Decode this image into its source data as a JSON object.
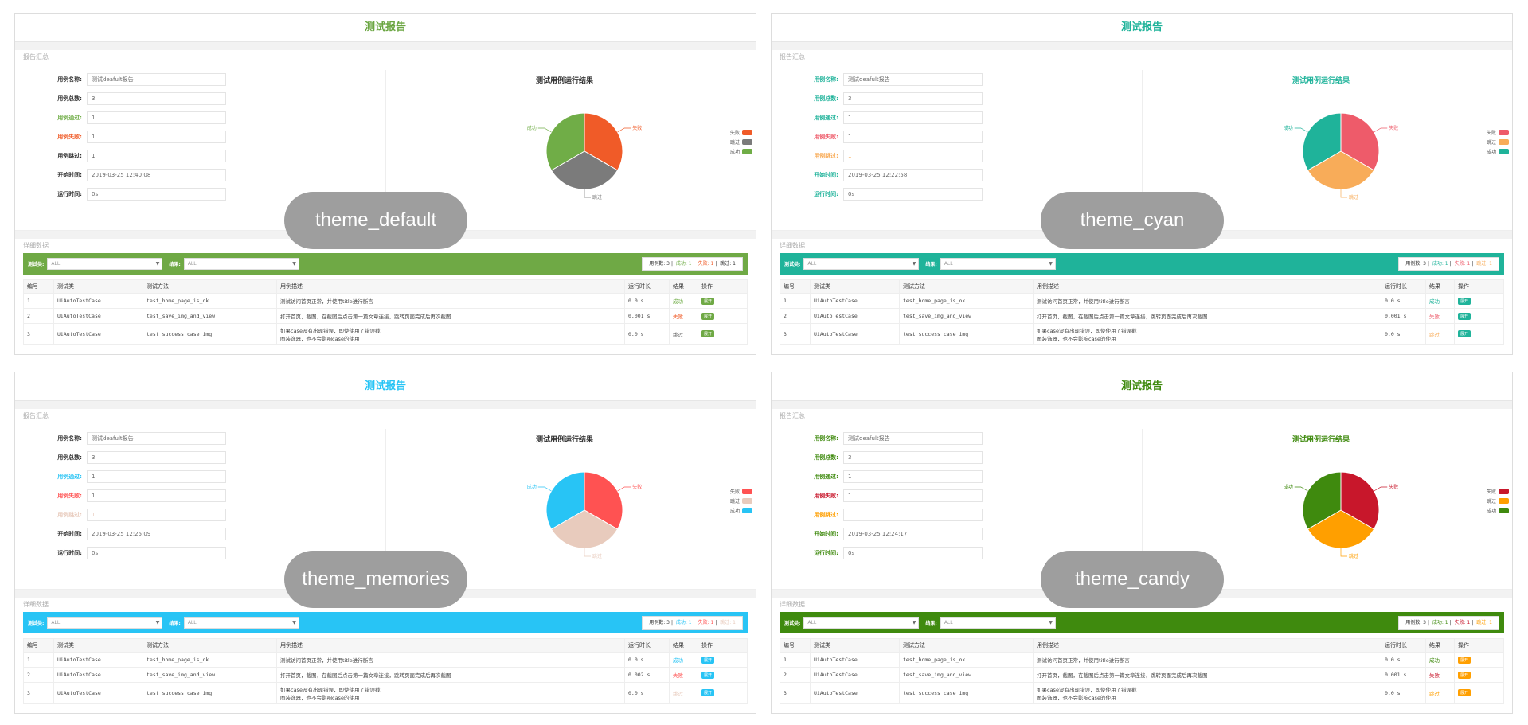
{
  "common": {
    "summary_label": "报告汇总",
    "detail_label": "详细数据",
    "chart_title": "测试用例运行结果",
    "filter_class_label": "测试类:",
    "filter_result_label": "结果:",
    "filter_all": "ALL",
    "fields": {
      "name": {
        "label": "用例名称:",
        "value": "测试deafult报告"
      },
      "total": {
        "label": "用例总数:",
        "value": "3"
      },
      "pass": {
        "label": "用例通过:",
        "value": "1"
      },
      "fail": {
        "label": "用例失败:",
        "value": "1"
      },
      "skip": {
        "label": "用例跳过:",
        "value": "1"
      },
      "start": {
        "label": "开始时间:"
      },
      "run": {
        "label": "运行时间:",
        "value": "0s"
      }
    },
    "counts": {
      "total": "用例数: 3",
      "pass": "成功: 1",
      "fail": "失败: 1",
      "skip": "跳过: 1"
    },
    "table": {
      "headers": [
        "编号",
        "测试类",
        "测试方法",
        "用例描述",
        "运行时长",
        "结果",
        "操作"
      ],
      "rows": [
        {
          "no": "1",
          "cls": "UiAutoTestCase",
          "method": "test_home_page_is_ok",
          "desc1": "测试访问首页正常，并使用title进行断言",
          "desc2": "",
          "result": "成功",
          "rtype": "pass",
          "op": "展开"
        },
        {
          "no": "2",
          "cls": "UiAutoTestCase",
          "method": "test_save_img_and_view",
          "desc1": "打开首页，截图，在截图后点击第一篇文章连接，跳转页面完成后再次截图",
          "desc2": "",
          "result": "失败",
          "rtype": "fail",
          "op": "展开"
        },
        {
          "no": "3",
          "cls": "UiAutoTestCase",
          "method": "test_success_case_img",
          "desc1": "如果case没有出现错误，即使使用了错误截",
          "desc2": "图装饰器，也不会影响case的使用",
          "result": "跳过",
          "rtype": "skip",
          "op": "展开"
        }
      ]
    },
    "pie_labels": {
      "pass": "成功",
      "fail": "失败",
      "skip": "跳过"
    },
    "legend": {
      "fail": "失败",
      "skip": "跳过",
      "pass": "成功"
    }
  },
  "chart_data": [
    {
      "type": "pie",
      "title": "测试用例运行结果",
      "labels": [
        "成功",
        "失败",
        "跳过"
      ],
      "values": [
        1,
        1,
        1
      ],
      "theme": "theme_default"
    },
    {
      "type": "pie",
      "title": "测试用例运行结果",
      "labels": [
        "成功",
        "失败",
        "跳过"
      ],
      "values": [
        1,
        1,
        1
      ],
      "theme": "theme_cyan"
    },
    {
      "type": "pie",
      "title": "测试用例运行结果",
      "labels": [
        "成功",
        "失败",
        "跳过"
      ],
      "values": [
        1,
        1,
        1
      ],
      "theme": "theme_memories"
    },
    {
      "type": "pie",
      "title": "测试用例运行结果",
      "labels": [
        "成功",
        "失败",
        "跳过"
      ],
      "values": [
        1,
        1,
        1
      ],
      "theme": "theme_candy"
    }
  ],
  "panels": [
    {
      "id": "default",
      "title": "测试报告",
      "overlay": "theme_default",
      "start_time": "2019-03-25 12:40:08",
      "durations": [
        "0.0 s",
        "0.001 s",
        "0.0 s"
      ],
      "colors": {
        "title": "#6ba642",
        "bar": "#6fa945",
        "pass": "#70ad47",
        "fail": "#f05b28",
        "skip": "#7b7b7b",
        "btn": "#6fa945",
        "ctitle": "#333333",
        "label_total": "#333333",
        "label_pass": "#70ad47",
        "label_fail": "#f05b28",
        "label_skip": "#333333",
        "label_start": "#333333",
        "label_run": "#333333",
        "label_name": "#333333",
        "val_pass": "#666666",
        "val_fail": "#666666",
        "val_skip": "#666666",
        "res_skip": "#666666",
        "cnt_skip": "#333333"
      }
    },
    {
      "id": "cyan",
      "title": "测试报告",
      "overlay": "theme_cyan",
      "start_time": "2019-03-25 12:22:58",
      "durations": [
        "0.0 s",
        "0.001 s",
        "0.0 s"
      ],
      "colors": {
        "title": "#1fb39a",
        "bar": "#1fb39a",
        "pass": "#1fb39a",
        "fail": "#ee5b6a",
        "skip": "#f8ac59",
        "btn": "#1fb39a",
        "ctitle": "#1fb39a",
        "label_total": "#1fb39a",
        "label_pass": "#1fb39a",
        "label_fail": "#ee5b6a",
        "label_skip": "#f8ac59",
        "label_start": "#1fb39a",
        "label_run": "#1fb39a",
        "label_name": "#1fb39a",
        "val_pass": "#666666",
        "val_fail": "#666666",
        "val_skip": "#f8ac59",
        "res_skip": "#f8ac59",
        "cnt_skip": "#f8ac59"
      }
    },
    {
      "id": "memories",
      "title": "测试报告",
      "overlay": "theme_memories",
      "start_time": "2019-03-25 12:25:09",
      "durations": [
        "0.0 s",
        "0.002 s",
        "0.0 s"
      ],
      "colors": {
        "title": "#28c4f5",
        "bar": "#28c4f5",
        "pass": "#28c4f5",
        "fail": "#ff5252",
        "skip": "#e8cbbd",
        "btn": "#28c4f5",
        "ctitle": "#333333",
        "label_total": "#333333",
        "label_pass": "#28c4f5",
        "label_fail": "#ff5252",
        "label_skip": "#e8cbbd",
        "label_start": "#333333",
        "label_run": "#333333",
        "label_name": "#333333",
        "val_pass": "#666666",
        "val_fail": "#666666",
        "val_skip": "#e8cbbd",
        "res_skip": "#e8cbbd",
        "cnt_skip": "#e8cbbd"
      }
    },
    {
      "id": "candy",
      "title": "测试报告",
      "overlay": "theme_candy",
      "start_time": "2019-03-25 12:24:17",
      "durations": [
        "0.0 s",
        "0.001 s",
        "0.0 s"
      ],
      "colors": {
        "title": "#3f8a0e",
        "bar": "#3f8a0e",
        "pass": "#3f8a0e",
        "fail": "#c8172b",
        "skip": "#ff9f00",
        "btn": "#ff9f00",
        "ctitle": "#3f8a0e",
        "label_total": "#3f8a0e",
        "label_pass": "#3f8a0e",
        "label_fail": "#c8172b",
        "label_skip": "#ff9f00",
        "label_start": "#3f8a0e",
        "label_run": "#3f8a0e",
        "label_name": "#3f8a0e",
        "val_pass": "#666666",
        "val_fail": "#666666",
        "val_skip": "#ff9f00",
        "res_skip": "#ff9f00",
        "cnt_skip": "#ff9f00"
      }
    }
  ]
}
